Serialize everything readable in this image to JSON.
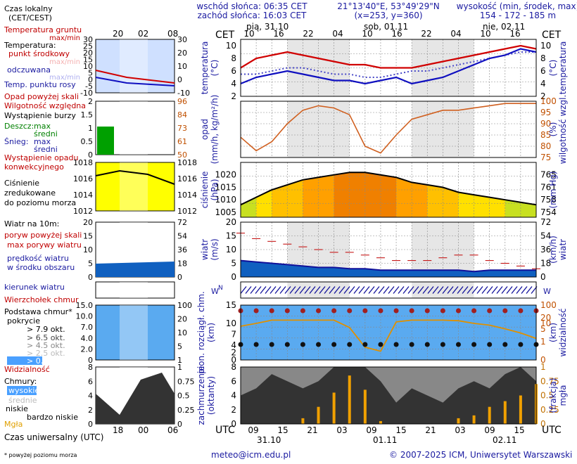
{
  "header": {
    "sunrise": "wschód słońca: 06:35 CET",
    "sunset": "zachód słońca: 16:03 CET",
    "coords": "21°13'40\"E, 53°49'29\"N",
    "grid": "(x=253, y=360)",
    "elevation_title": "wysokość (min, środek, max)",
    "elevation_values": "154 - 172 - 185 m"
  },
  "timeline": {
    "tz_top": "CET",
    "tz_bottom": "UTC",
    "day_labels": [
      "pią, 31.10",
      "sob, 01.11",
      "nie, 02.11"
    ],
    "hours_cet": [
      "10",
      "16",
      "22",
      "04",
      "10",
      "16",
      "22",
      "04",
      "10",
      "16"
    ],
    "hours_utc": [
      "09",
      "15",
      "21",
      "03",
      "09",
      "15",
      "21",
      "03",
      "09",
      "15"
    ],
    "dates_bottom": [
      "31.10",
      "01.11",
      "02.11"
    ]
  },
  "legend": {
    "czas_lokalny": "Czas lokalny",
    "czas_lokalny2": "(CET/CEST)",
    "legend_hours_top": [
      "20",
      "02",
      "08"
    ],
    "legend_hours_bottom": [
      "18",
      "00",
      "06"
    ],
    "temp_ground": "Temperatura gruntu",
    "temp_ground2": "max/min",
    "temperature": "Temperatura:",
    "mid_point": "punkt środkowy",
    "max_min": "max/min",
    "perceived": "odczuwana",
    "perceived_maxmin": "max/min",
    "dew_point": "Temp. punktu rosy",
    "precip_above": "Opad powyżej skali",
    "humidity": "Wilgotność względna",
    "storm": "Wystąpienie burzy",
    "rain": "Deszcz:",
    "max": "max",
    "avg": "średni",
    "snow": "Śnieg:",
    "convective": "Wystąpienie opadu",
    "convective2": "konwekcyjnego",
    "pressure": "Ciśnienie",
    "pressure2": "zredukowane",
    "pressure3": "do poziomu morza",
    "wind_title": "Wiatr na 10m:",
    "gusts_above": "poryw powyżej skali",
    "max_gusts": "max porywy wiatru",
    "wind_speed": "prędkość wiatru",
    "wind_speed2": "w środku obszaru",
    "wind_dir": "kierunek wiatru",
    "cloud_base_title": "Podstawa chmur*",
    "cloud_base_title2": "pokrycie",
    "cb_cumulonimbus": "Wierzchołek chmur",
    "okt_79": "> 7.9 okt.",
    "okt_65": "> 6.5 okt.",
    "okt_45": "> 4.5 okt.",
    "okt_25": "> 2.5 okt.",
    "okt_01": "> 0.1 okt.",
    "visibility": "Widzialność",
    "clouds": "Chmury:",
    "high": "wysokie",
    "mid": "średnie",
    "low": "niskie",
    "very_low": "bardzo niskie",
    "fog": "Mgła",
    "utc_label": "Czas uniwersalny (UTC)",
    "footnote": "* powyżej poziomu morza"
  },
  "panels": {
    "temp": {
      "ylabel": "temperatura",
      "unit": "(°C)",
      "ticks": [
        2,
        4,
        6,
        8,
        10
      ],
      "legend_ticks": [
        -10,
        -5,
        0,
        5,
        10,
        15,
        20,
        25,
        30
      ],
      "legend_ticks_r": [
        -10,
        0,
        10,
        20,
        30
      ]
    },
    "precip": {
      "ylabel": "opad",
      "unit": "(mm/h, kg/m²/h)",
      "ylabel_r": "wilgotność wzgl.",
      "unit_r": "(%)",
      "ticks_r": [
        75,
        80,
        85,
        90,
        95,
        100
      ],
      "legend_ticks": [
        0,
        0.5,
        1.0,
        1.5,
        2.0
      ],
      "legend_ticks_r": [
        50,
        61,
        73,
        84,
        96
      ]
    },
    "pressure": {
      "ylabel": "ciśnienie",
      "unit": "(hPa)",
      "ylabel_r": "(mm Hg)",
      "ticks": [
        1005,
        1010,
        1015,
        1020
      ],
      "ticks_r": [
        754,
        758,
        761,
        765
      ],
      "legend_ticks": [
        1012,
        1014,
        1016,
        1018
      ]
    },
    "wind": {
      "ylabel": "wiatr",
      "unit": "(m/s)",
      "ylabel_r": "(km/h)",
      "ylabel_r2": "wiatr",
      "ticks": [
        0,
        5,
        10,
        15,
        20
      ],
      "ticks_r": [
        0,
        18,
        36,
        54,
        72
      ]
    },
    "clouds": {
      "ylabel": "pion. rozciągł. chm.",
      "unit": "(km)",
      "ylabel_r": "widzialność",
      "unit_r": "(km)",
      "ticks": [
        0,
        2.0,
        4.0,
        7.0,
        10.0,
        15.0
      ],
      "ticks_r": [
        0,
        1,
        5,
        10,
        20,
        100
      ]
    },
    "cover": {
      "ylabel": "zachmurzenie",
      "unit": "(oktanty)",
      "ylabel_r": "mgła",
      "unit_r": "(frakcja)",
      "ticks": [
        0,
        2,
        4,
        6,
        8
      ],
      "ticks_r": [
        0,
        0.25,
        0.5,
        0.75,
        1
      ]
    }
  },
  "chart_data": {
    "type": "line",
    "x_hours_utc": [
      0,
      3,
      6,
      9,
      12,
      15,
      18,
      21,
      24,
      27,
      30,
      33,
      36,
      39,
      42,
      45,
      48,
      51,
      54,
      57
    ],
    "temperature": [
      6.5,
      8.0,
      8.5,
      9.0,
      8.5,
      8.0,
      7.5,
      7.0,
      7.0,
      6.5,
      6.5,
      6.5,
      7.0,
      7.5,
      8.0,
      8.5,
      9.0,
      9.5,
      10.0,
      9.5
    ],
    "dew_point": [
      5.5,
      5.5,
      6.0,
      6.5,
      6.5,
      6.0,
      5.5,
      5.5,
      5.0,
      5.0,
      5.5,
      6.0,
      6.0,
      6.5,
      7.0,
      7.5,
      8.0,
      8.5,
      9.0,
      9.0
    ],
    "perceived": [
      4.0,
      5.0,
      5.5,
      6.0,
      5.5,
      5.0,
      4.5,
      4.5,
      4.0,
      4.5,
      5.0,
      4.0,
      4.5,
      5.0,
      6.0,
      7.0,
      8.0,
      8.5,
      9.5,
      9.0
    ],
    "humidity": [
      84,
      78,
      82,
      90,
      96,
      98,
      97,
      94,
      80,
      77,
      85,
      92,
      94,
      96,
      96,
      97,
      98,
      99,
      99,
      99
    ],
    "pressure": [
      1008,
      1011,
      1014,
      1016,
      1018,
      1019,
      1020,
      1021,
      1021,
      1020,
      1019,
      1017,
      1016,
      1015,
      1013,
      1012,
      1011,
      1010,
      1009,
      1008
    ],
    "wind_speed": [
      6,
      5.5,
      5,
      4.5,
      4,
      3.5,
      3.5,
      3,
      3,
      2.5,
      2.5,
      2.5,
      2.5,
      2.5,
      2.5,
      2,
      2.5,
      2.5,
      2.5,
      2.5
    ],
    "wind_gusts": [
      16,
      14,
      13,
      12,
      11,
      10,
      9,
      9,
      8,
      7,
      6,
      6,
      6,
      7,
      8,
      8,
      6,
      5,
      4,
      3
    ],
    "visibility_km": [
      7,
      10,
      15,
      15,
      15,
      15,
      15,
      6,
      0.5,
      0.3,
      12,
      15,
      15,
      15,
      14,
      10,
      8,
      5,
      3,
      1.5
    ],
    "low_cloud_okt": [
      4,
      5,
      7,
      6,
      5,
      6,
      8,
      8,
      8,
      6,
      3,
      5,
      4,
      3,
      5,
      6,
      5,
      7,
      8,
      6
    ],
    "fog_fraction": [
      0,
      0,
      0,
      0,
      0.1,
      0.3,
      0.55,
      0.85,
      0.6,
      0.05,
      0,
      0,
      0,
      0,
      0.1,
      0.15,
      0.3,
      0.4,
      0.5,
      0.7
    ]
  }
}
